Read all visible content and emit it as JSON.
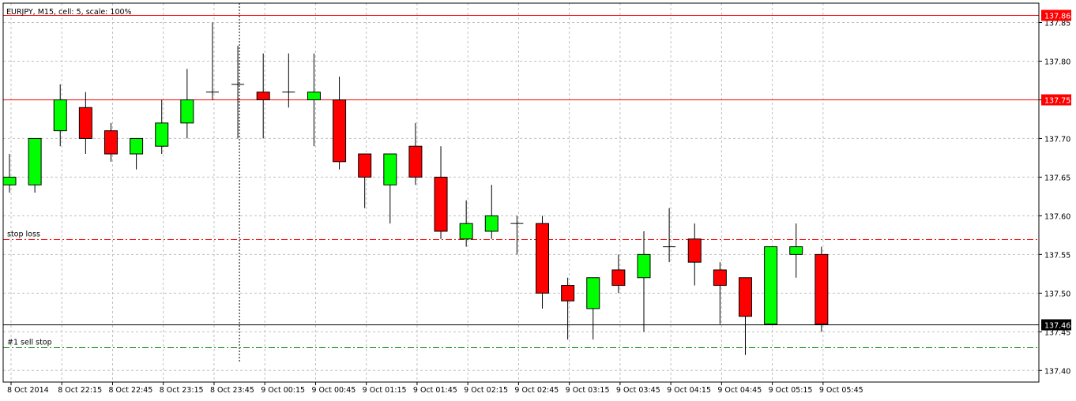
{
  "header": "EURJPY, M15, cell: 5, scale: 100%",
  "chart_data": {
    "type": "candlestick",
    "symbol": "EURJPY",
    "timeframe": "M15",
    "ylim": [
      137.385,
      137.875
    ],
    "grid": true,
    "y_ticks": [
      "137.85",
      "137.80",
      "137.75",
      "137.70",
      "137.65",
      "137.60",
      "137.55",
      "137.50",
      "137.45",
      "137.40"
    ],
    "x_ticks": [
      {
        "index": 0,
        "label": "8 Oct 2014"
      },
      {
        "index": 2,
        "label": "8 Oct 22:15"
      },
      {
        "index": 4,
        "label": "8 Oct 22:45"
      },
      {
        "index": 6,
        "label": "8 Oct 23:15"
      },
      {
        "index": 8,
        "label": "8 Oct 23:45"
      },
      {
        "index": 10,
        "label": "9 Oct 00:15"
      },
      {
        "index": 12,
        "label": "9 Oct 00:45"
      },
      {
        "index": 14,
        "label": "9 Oct 01:15"
      },
      {
        "index": 16,
        "label": "9 Oct 01:45"
      },
      {
        "index": 18,
        "label": "9 Oct 02:15"
      },
      {
        "index": 20,
        "label": "9 Oct 02:45"
      },
      {
        "index": 22,
        "label": "9 Oct 03:15"
      },
      {
        "index": 24,
        "label": "9 Oct 03:45"
      },
      {
        "index": 26,
        "label": "9 Oct 04:15"
      },
      {
        "index": 28,
        "label": "9 Oct 04:45"
      },
      {
        "index": 30,
        "label": "9 Oct 05:15"
      },
      {
        "index": 32,
        "label": "9 Oct 05:45"
      }
    ],
    "candles": [
      {
        "o": 137.64,
        "h": 137.68,
        "l": 137.63,
        "c": 137.65
      },
      {
        "o": 137.64,
        "h": 137.7,
        "l": 137.63,
        "c": 137.7
      },
      {
        "o": 137.71,
        "h": 137.77,
        "l": 137.69,
        "c": 137.75
      },
      {
        "o": 137.74,
        "h": 137.76,
        "l": 137.68,
        "c": 137.7
      },
      {
        "o": 137.71,
        "h": 137.72,
        "l": 137.67,
        "c": 137.68
      },
      {
        "o": 137.68,
        "h": 137.7,
        "l": 137.66,
        "c": 137.7
      },
      {
        "o": 137.69,
        "h": 137.75,
        "l": 137.68,
        "c": 137.72
      },
      {
        "o": 137.72,
        "h": 137.79,
        "l": 137.7,
        "c": 137.75
      },
      {
        "o": 137.76,
        "h": 137.85,
        "l": 137.75,
        "c": 137.76
      },
      {
        "o": 137.77,
        "h": 137.82,
        "l": 137.7,
        "c": 137.77
      },
      {
        "o": 137.76,
        "h": 137.81,
        "l": 137.7,
        "c": 137.75
      },
      {
        "o": 137.76,
        "h": 137.81,
        "l": 137.74,
        "c": 137.76
      },
      {
        "o": 137.75,
        "h": 137.81,
        "l": 137.69,
        "c": 137.76
      },
      {
        "o": 137.75,
        "h": 137.78,
        "l": 137.66,
        "c": 137.67
      },
      {
        "o": 137.68,
        "h": 137.68,
        "l": 137.61,
        "c": 137.65
      },
      {
        "o": 137.64,
        "h": 137.68,
        "l": 137.59,
        "c": 137.68
      },
      {
        "o": 137.69,
        "h": 137.72,
        "l": 137.64,
        "c": 137.65
      },
      {
        "o": 137.65,
        "h": 137.69,
        "l": 137.57,
        "c": 137.58
      },
      {
        "o": 137.57,
        "h": 137.62,
        "l": 137.56,
        "c": 137.59
      },
      {
        "o": 137.58,
        "h": 137.64,
        "l": 137.57,
        "c": 137.6
      },
      {
        "o": 137.59,
        "h": 137.6,
        "l": 137.55,
        "c": 137.59
      },
      {
        "o": 137.59,
        "h": 137.6,
        "l": 137.48,
        "c": 137.5
      },
      {
        "o": 137.51,
        "h": 137.52,
        "l": 137.44,
        "c": 137.49
      },
      {
        "o": 137.48,
        "h": 137.52,
        "l": 137.44,
        "c": 137.52
      },
      {
        "o": 137.53,
        "h": 137.55,
        "l": 137.5,
        "c": 137.51
      },
      {
        "o": 137.52,
        "h": 137.58,
        "l": 137.45,
        "c": 137.55
      },
      {
        "o": 137.56,
        "h": 137.61,
        "l": 137.54,
        "c": 137.56
      },
      {
        "o": 137.57,
        "h": 137.59,
        "l": 137.51,
        "c": 137.54
      },
      {
        "o": 137.53,
        "h": 137.54,
        "l": 137.46,
        "c": 137.51
      },
      {
        "o": 137.52,
        "h": 137.52,
        "l": 137.42,
        "c": 137.47
      },
      {
        "o": 137.46,
        "h": 137.56,
        "l": 137.46,
        "c": 137.56
      },
      {
        "o": 137.55,
        "h": 137.59,
        "l": 137.52,
        "c": 137.56
      },
      {
        "o": 137.55,
        "h": 137.56,
        "l": 137.45,
        "c": 137.46
      }
    ],
    "levels": [
      {
        "name": "resistance-high",
        "price": 137.86,
        "label": "",
        "tag": "137.86",
        "color": "#ff0000",
        "style": "solid"
      },
      {
        "name": "resistance-mid",
        "price": 137.75,
        "label": "",
        "tag": "137.75",
        "color": "#ff0000",
        "style": "solid"
      },
      {
        "name": "stop-loss",
        "price": 137.57,
        "label": "stop loss",
        "tag": "",
        "color": "#ff0000",
        "style": "dashdot"
      },
      {
        "name": "current-price",
        "price": 137.46,
        "label": "",
        "tag": "137.46",
        "color": "#000000",
        "style": "solid"
      },
      {
        "name": "sell-stop",
        "price": 137.43,
        "label": "#1 sell stop",
        "tag": "",
        "color": "#008000",
        "style": "dashdot"
      }
    ],
    "crosshair_index": 9,
    "colors": {
      "bull": "#00ff00",
      "bear": "#ff0000",
      "wick": "#000000",
      "grid": "#c0c0c0",
      "axis": "#000000",
      "background": "#ffffff"
    }
  }
}
